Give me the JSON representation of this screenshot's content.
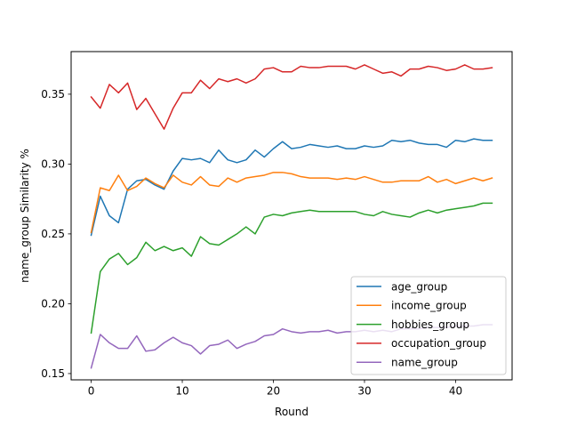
{
  "chart_data": {
    "type": "line",
    "xlabel": "Round",
    "ylabel": "name_group Similarity %",
    "xlim": [
      -2.2,
      46.2
    ],
    "ylim": [
      0.1455,
      0.3805
    ],
    "xticks": [
      0,
      10,
      20,
      30,
      40
    ],
    "yticks": [
      0.15,
      0.2,
      0.25,
      0.3,
      0.35
    ],
    "ytick_labels": [
      "0.15",
      "0.20",
      "0.25",
      "0.30",
      "0.35"
    ],
    "grid": false,
    "legend_position": "lower-right",
    "x": [
      0,
      1,
      2,
      3,
      4,
      5,
      6,
      7,
      8,
      9,
      10,
      11,
      12,
      13,
      14,
      15,
      16,
      17,
      18,
      19,
      20,
      21,
      22,
      23,
      24,
      25,
      26,
      27,
      28,
      29,
      30,
      31,
      32,
      33,
      34,
      35,
      36,
      37,
      38,
      39,
      40,
      41,
      42,
      43,
      44
    ],
    "series": [
      {
        "name": "age_group",
        "color": "#1f77b4",
        "values": [
          0.249,
          0.277,
          0.263,
          0.258,
          0.282,
          0.288,
          0.289,
          0.285,
          0.282,
          0.295,
          0.304,
          0.303,
          0.304,
          0.301,
          0.31,
          0.303,
          0.301,
          0.303,
          0.31,
          0.305,
          0.311,
          0.316,
          0.311,
          0.312,
          0.314,
          0.313,
          0.312,
          0.313,
          0.311,
          0.311,
          0.313,
          0.312,
          0.313,
          0.317,
          0.316,
          0.317,
          0.315,
          0.314,
          0.314,
          0.312,
          0.317,
          0.316,
          0.318,
          0.317,
          0.317
        ]
      },
      {
        "name": "income_group",
        "color": "#ff7f0e",
        "values": [
          0.251,
          0.283,
          0.281,
          0.292,
          0.281,
          0.284,
          0.29,
          0.286,
          0.283,
          0.292,
          0.287,
          0.285,
          0.291,
          0.285,
          0.284,
          0.29,
          0.287,
          0.29,
          0.291,
          0.292,
          0.294,
          0.294,
          0.293,
          0.291,
          0.29,
          0.29,
          0.29,
          0.289,
          0.29,
          0.289,
          0.291,
          0.289,
          0.287,
          0.287,
          0.288,
          0.288,
          0.288,
          0.291,
          0.287,
          0.289,
          0.286,
          0.288,
          0.29,
          0.288,
          0.29
        ]
      },
      {
        "name": "hobbies_group",
        "color": "#2ca02c",
        "values": [
          0.179,
          0.223,
          0.232,
          0.236,
          0.228,
          0.233,
          0.244,
          0.238,
          0.241,
          0.238,
          0.24,
          0.234,
          0.248,
          0.243,
          0.242,
          0.246,
          0.25,
          0.255,
          0.25,
          0.262,
          0.264,
          0.263,
          0.265,
          0.266,
          0.267,
          0.266,
          0.266,
          0.266,
          0.266,
          0.266,
          0.264,
          0.263,
          0.266,
          0.264,
          0.263,
          0.262,
          0.265,
          0.267,
          0.265,
          0.267,
          0.268,
          0.269,
          0.27,
          0.272,
          0.272
        ]
      },
      {
        "name": "occupation_group",
        "color": "#d62728",
        "values": [
          0.348,
          0.34,
          0.357,
          0.351,
          0.358,
          0.339,
          0.347,
          0.336,
          0.325,
          0.34,
          0.351,
          0.351,
          0.36,
          0.354,
          0.361,
          0.359,
          0.361,
          0.358,
          0.361,
          0.368,
          0.369,
          0.366,
          0.366,
          0.37,
          0.369,
          0.369,
          0.37,
          0.37,
          0.37,
          0.368,
          0.371,
          0.368,
          0.365,
          0.366,
          0.363,
          0.368,
          0.368,
          0.37,
          0.369,
          0.367,
          0.368,
          0.371,
          0.368,
          0.368,
          0.369
        ]
      },
      {
        "name": "name_group",
        "color": "#9467bd",
        "values": [
          0.154,
          0.178,
          0.172,
          0.168,
          0.168,
          0.177,
          0.166,
          0.167,
          0.172,
          0.176,
          0.172,
          0.17,
          0.164,
          0.17,
          0.171,
          0.174,
          0.168,
          0.171,
          0.173,
          0.177,
          0.178,
          0.182,
          0.18,
          0.179,
          0.18,
          0.18,
          0.181,
          0.179,
          0.18,
          0.18,
          0.181,
          0.18,
          0.181,
          0.18,
          0.182,
          0.182,
          0.182,
          0.183,
          0.183,
          0.183,
          0.184,
          0.184,
          0.184,
          0.185,
          0.185
        ]
      }
    ]
  }
}
